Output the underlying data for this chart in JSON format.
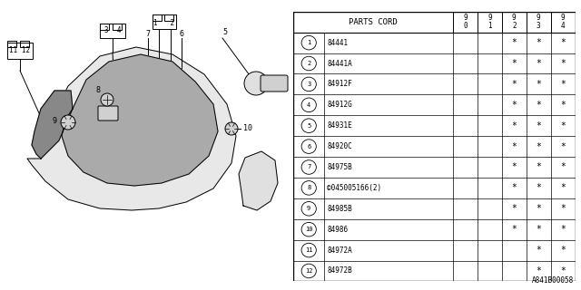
{
  "bg_color": "#ffffff",
  "table_header": "PARTS CORD",
  "col_headers": [
    "9\n0",
    "9\n1",
    "9\n2",
    "9\n3",
    "9\n4"
  ],
  "rows": [
    {
      "num": "1",
      "code": "84441",
      "cols": [
        " ",
        " ",
        "*",
        "*",
        "*"
      ]
    },
    {
      "num": "2",
      "code": "84441A",
      "cols": [
        " ",
        " ",
        "*",
        "*",
        "*"
      ]
    },
    {
      "num": "3",
      "code": "84912F",
      "cols": [
        " ",
        " ",
        "*",
        "*",
        "*"
      ]
    },
    {
      "num": "4",
      "code": "84912G",
      "cols": [
        " ",
        " ",
        "*",
        "*",
        "*"
      ]
    },
    {
      "num": "5",
      "code": "84931E",
      "cols": [
        " ",
        " ",
        "*",
        "*",
        "*"
      ]
    },
    {
      "num": "6",
      "code": "84920C",
      "cols": [
        " ",
        " ",
        "*",
        "*",
        "*"
      ]
    },
    {
      "num": "7",
      "code": "84975B",
      "cols": [
        " ",
        " ",
        "*",
        "*",
        "*"
      ]
    },
    {
      "num": "8",
      "code": "©045005166(2)",
      "cols": [
        " ",
        " ",
        "*",
        "*",
        "*"
      ]
    },
    {
      "num": "9",
      "code": "84985B",
      "cols": [
        " ",
        " ",
        "*",
        "*",
        "*"
      ]
    },
    {
      "num": "10",
      "code": "84986",
      "cols": [
        " ",
        " ",
        "*",
        "*",
        "*"
      ]
    },
    {
      "num": "11",
      "code": "84972A",
      "cols": [
        " ",
        " ",
        " ",
        "*",
        "*"
      ]
    },
    {
      "num": "12",
      "code": "84972B",
      "cols": [
        " ",
        " ",
        " ",
        "*",
        "*"
      ]
    }
  ],
  "footer": "A841B00058",
  "line_color": "#000000"
}
